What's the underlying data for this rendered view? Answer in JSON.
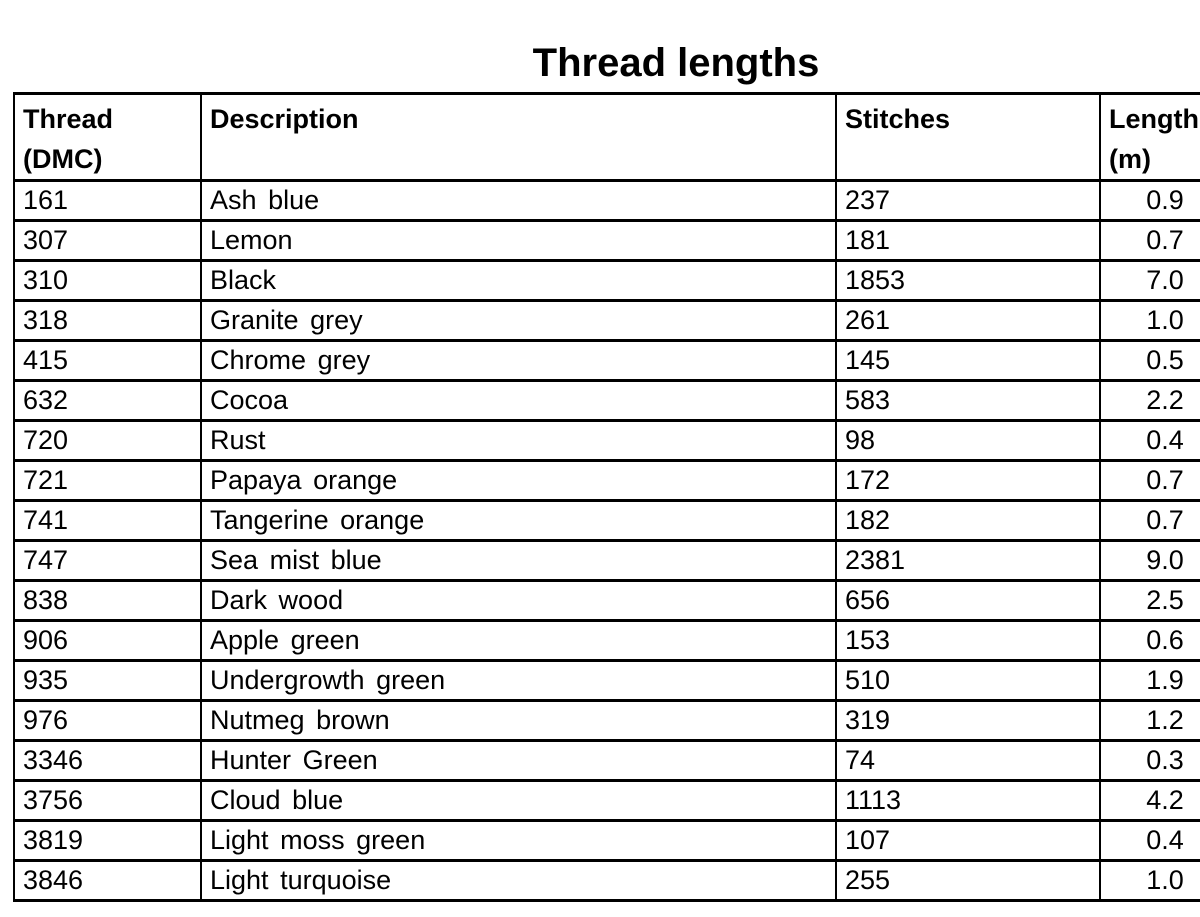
{
  "page": {
    "title": "Thread lengths"
  },
  "table": {
    "columns": [
      {
        "id": "thread",
        "label": "Thread (DMC)",
        "align": "left"
      },
      {
        "id": "description",
        "label": "Description",
        "align": "left"
      },
      {
        "id": "stitches",
        "label": "Stitches",
        "align": "left"
      },
      {
        "id": "length",
        "label": "Length (m)",
        "align": "center"
      }
    ],
    "rows": [
      {
        "thread": "161",
        "description": "Ash blue",
        "stitches": "237",
        "length": "0.9"
      },
      {
        "thread": "307",
        "description": "Lemon",
        "stitches": "181",
        "length": "0.7"
      },
      {
        "thread": "310",
        "description": "Black",
        "stitches": "1853",
        "length": "7.0"
      },
      {
        "thread": "318",
        "description": "Granite grey",
        "stitches": "261",
        "length": "1.0"
      },
      {
        "thread": "415",
        "description": "Chrome grey",
        "stitches": "145",
        "length": "0.5"
      },
      {
        "thread": "632",
        "description": "Cocoa",
        "stitches": "583",
        "length": "2.2"
      },
      {
        "thread": "720",
        "description": "Rust",
        "stitches": "98",
        "length": "0.4"
      },
      {
        "thread": "721",
        "description": "Papaya orange",
        "stitches": "172",
        "length": "0.7"
      },
      {
        "thread": "741",
        "description": "Tangerine orange",
        "stitches": "182",
        "length": "0.7"
      },
      {
        "thread": "747",
        "description": "Sea mist blue",
        "stitches": "2381",
        "length": "9.0"
      },
      {
        "thread": "838",
        "description": "Dark wood",
        "stitches": "656",
        "length": "2.5"
      },
      {
        "thread": "906",
        "description": "Apple green",
        "stitches": "153",
        "length": "0.6"
      },
      {
        "thread": "935",
        "description": "Undergrowth green",
        "stitches": "510",
        "length": "1.9"
      },
      {
        "thread": "976",
        "description": "Nutmeg brown",
        "stitches": "319",
        "length": "1.2"
      },
      {
        "thread": "3346",
        "description": "Hunter Green",
        "stitches": "74",
        "length": "0.3"
      },
      {
        "thread": "3756",
        "description": "Cloud blue",
        "stitches": "1113",
        "length": "4.2"
      },
      {
        "thread": "3819",
        "description": "Light moss green",
        "stitches": "107",
        "length": "0.4"
      },
      {
        "thread": "3846",
        "description": "Light turquoise",
        "stitches": "255",
        "length": "1.0"
      }
    ],
    "colors": {
      "text": "#000000",
      "border": "#000000",
      "background": "#ffffff"
    }
  }
}
